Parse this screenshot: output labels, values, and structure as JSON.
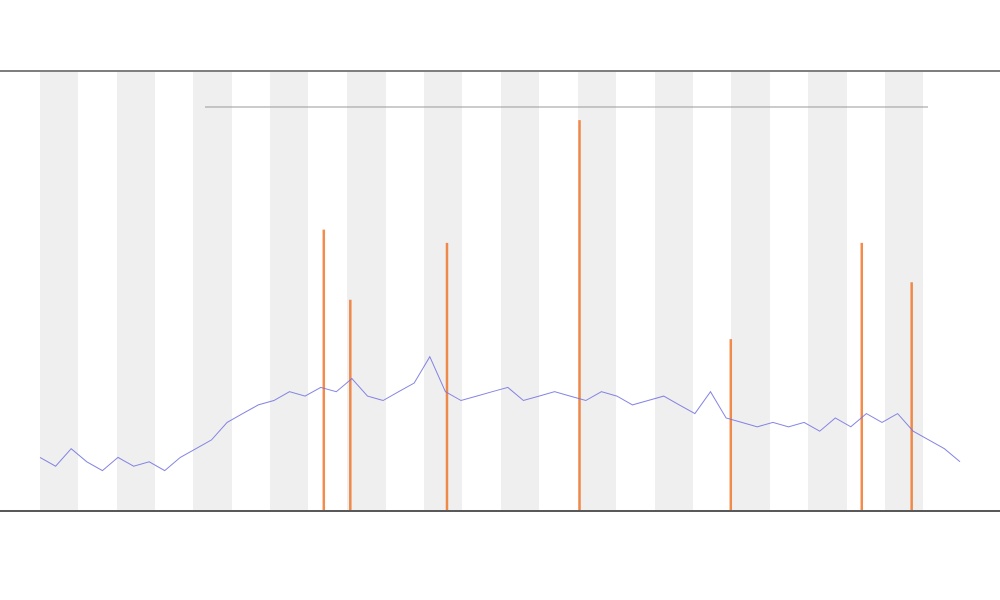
{
  "chart_data": {
    "type": "line",
    "xlim": [
      0,
      59
    ],
    "ylim": [
      0,
      100
    ],
    "series": [
      {
        "color": "#7070e0",
        "x": [
          0,
          1,
          2,
          3,
          4,
          5,
          6,
          7,
          8,
          9,
          10,
          11,
          12,
          13,
          14,
          15,
          16,
          17,
          18,
          19,
          20,
          21,
          22,
          23,
          24,
          25,
          26,
          27,
          28,
          29,
          30,
          31,
          32,
          33,
          34,
          35,
          36,
          37,
          38,
          39,
          40,
          41,
          42,
          43,
          44,
          45,
          46,
          47,
          48,
          49,
          50,
          51,
          52,
          53,
          54,
          55,
          56,
          57,
          58,
          59
        ],
        "values": [
          12,
          10,
          14,
          11,
          9,
          12,
          10,
          11,
          9,
          12,
          14,
          16,
          20,
          22,
          24,
          25,
          27,
          26,
          28,
          27,
          30,
          26,
          25,
          27,
          29,
          35,
          27,
          25,
          26,
          27,
          28,
          25,
          26,
          27,
          26,
          25,
          27,
          26,
          24,
          25,
          26,
          24,
          22,
          27,
          21,
          20,
          19,
          20,
          19,
          20,
          18,
          21,
          19,
          22,
          20,
          22,
          18,
          16,
          14,
          11
        ]
      }
    ],
    "spikes": {
      "color": "#f07020",
      "x": [
        18.2,
        19.9,
        26.1,
        34.6,
        44.3,
        52.7,
        55.9
      ],
      "values": [
        64,
        48,
        61,
        89,
        39,
        61,
        52
      ]
    }
  }
}
